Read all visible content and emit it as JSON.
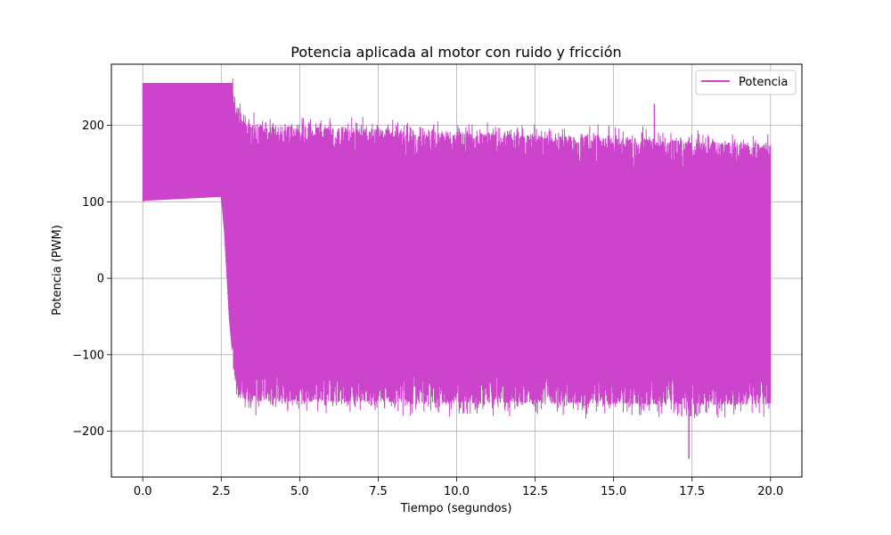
{
  "chart_data": {
    "type": "line",
    "title": "Potencia aplicada al motor con ruido y fricción",
    "xlabel": "Tiempo (segundos)",
    "ylabel": "Potencia (PWM)",
    "xlim": [
      -1.0,
      21.0
    ],
    "ylim": [
      -260,
      280
    ],
    "xticks": [
      0.0,
      2.5,
      5.0,
      7.5,
      10.0,
      12.5,
      15.0,
      17.5,
      20.0
    ],
    "xtick_labels": [
      "0.0",
      "2.5",
      "5.0",
      "7.5",
      "10.0",
      "12.5",
      "15.0",
      "17.5",
      "20.0"
    ],
    "yticks": [
      -200,
      -100,
      0,
      100,
      200
    ],
    "ytick_labels": [
      "−200",
      "−100",
      "0",
      "100",
      "200"
    ],
    "grid": true,
    "legend_position": "top-right",
    "series": [
      {
        "name": "Potencia",
        "color": "#cc44cc",
        "x_range": [
          0.0,
          20.0
        ],
        "envelope_x": [
          0.0,
          0.1,
          2.5,
          2.6,
          2.75,
          2.9,
          3.0,
          3.3,
          20.0
        ],
        "envelope_upper": [
          255,
          255,
          255,
          255,
          255,
          255,
          225,
          200,
          175
        ],
        "envelope_lower": [
          101,
          102,
          107,
          60,
          -50,
          -120,
          -150,
          -160,
          -165
        ],
        "upper_peak_max": 228,
        "lower_peak_min": -236
      }
    ]
  }
}
